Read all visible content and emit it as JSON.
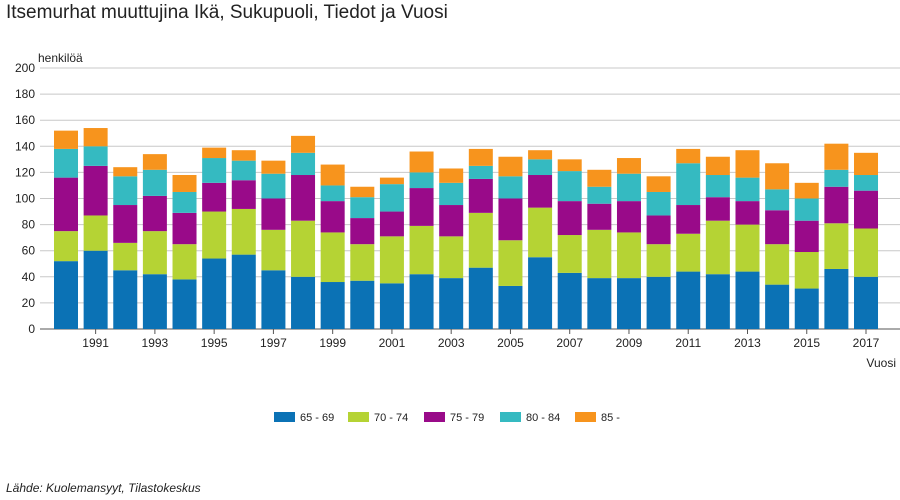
{
  "chart_data": {
    "type": "bar",
    "stacked": true,
    "title": "Itsemurhat muuttujina Ikä, Sukupuoli, Tiedot ja Vuosi",
    "ylabel": "henkilöä",
    "xlabel": "Vuosi",
    "ylim": [
      0,
      200
    ],
    "yticks": [
      0,
      20,
      40,
      60,
      80,
      100,
      120,
      140,
      160,
      180,
      200
    ],
    "categories": [
      "1990",
      "1991",
      "1992",
      "1993",
      "1994",
      "1995",
      "1996",
      "1997",
      "1998",
      "1999",
      "2000",
      "2001",
      "2002",
      "2003",
      "2004",
      "2005",
      "2006",
      "2007",
      "2008",
      "2009",
      "2010",
      "2011",
      "2012",
      "2013",
      "2014",
      "2015",
      "2016",
      "2017"
    ],
    "xtick_labels": [
      "1991",
      "1993",
      "1995",
      "1997",
      "1999",
      "2001",
      "2003",
      "2005",
      "2007",
      "2009",
      "2011",
      "2013",
      "2015",
      "2017"
    ],
    "grid": true,
    "legend_position": "bottom",
    "series": [
      {
        "name": "65 - 69",
        "color": "#0b72b5",
        "values": [
          52,
          60,
          45,
          42,
          38,
          54,
          57,
          45,
          40,
          36,
          37,
          35,
          42,
          39,
          47,
          33,
          55,
          43,
          39,
          39,
          40,
          44,
          42,
          44,
          34,
          31,
          46,
          40
        ]
      },
      {
        "name": "70 - 74",
        "color": "#b5d334",
        "values": [
          23,
          27,
          21,
          33,
          27,
          36,
          35,
          31,
          43,
          38,
          28,
          36,
          37,
          32,
          42,
          35,
          38,
          29,
          37,
          35,
          25,
          29,
          41,
          36,
          31,
          28,
          35,
          37
        ]
      },
      {
        "name": "75 - 79",
        "color": "#990a89",
        "values": [
          41,
          38,
          29,
          27,
          24,
          22,
          22,
          24,
          35,
          24,
          20,
          19,
          29,
          24,
          26,
          32,
          25,
          26,
          20,
          24,
          22,
          22,
          18,
          18,
          26,
          24,
          28,
          29
        ]
      },
      {
        "name": "80 - 84",
        "color": "#35bac1",
        "values": [
          22,
          15,
          22,
          20,
          16,
          19,
          15,
          19,
          17,
          12,
          16,
          21,
          12,
          17,
          10,
          17,
          12,
          23,
          13,
          21,
          18,
          32,
          17,
          18,
          16,
          17,
          13,
          12
        ]
      },
      {
        "name": "85 -",
        "color": "#f7941d",
        "values": [
          14,
          14,
          7,
          12,
          13,
          8,
          8,
          10,
          13,
          16,
          8,
          5,
          16,
          11,
          13,
          15,
          7,
          9,
          13,
          12,
          12,
          11,
          14,
          21,
          20,
          12,
          20,
          17
        ]
      }
    ]
  },
  "footer": {
    "source": "Lähde: Kuolemansyyt, Tilastokeskus"
  }
}
